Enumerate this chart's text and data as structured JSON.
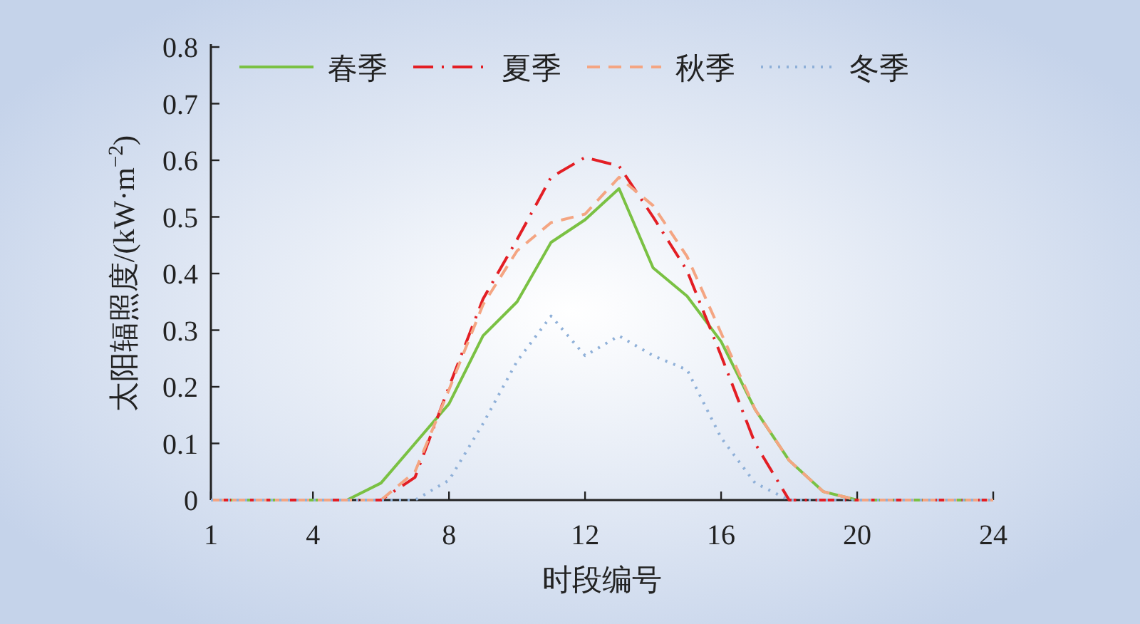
{
  "chart_data": {
    "type": "line",
    "xlabel": "时段编号",
    "ylabel": "太阳辐照度/(kW·m$^{−2}$)",
    "x": [
      1,
      2,
      3,
      4,
      5,
      6,
      7,
      8,
      9,
      10,
      11,
      12,
      13,
      14,
      15,
      16,
      17,
      18,
      19,
      20,
      21,
      22,
      23,
      24
    ],
    "xlim": [
      1,
      24
    ],
    "xticks": [
      1,
      4,
      8,
      12,
      16,
      20,
      24
    ],
    "ylim": [
      0,
      0.8
    ],
    "yticks": [
      0,
      0.1,
      0.2,
      0.3,
      0.4,
      0.5,
      0.6,
      0.7,
      0.8
    ],
    "grid": false,
    "legend": "top",
    "marker": "none",
    "series": [
      {
        "name": "春季",
        "color": "#7ac143",
        "line_style": "solid",
        "values": [
          0,
          0,
          0,
          0,
          0,
          0.03,
          0.1,
          0.17,
          0.29,
          0.35,
          0.455,
          0.495,
          0.55,
          0.41,
          0.36,
          0.28,
          0.16,
          0.07,
          0.015,
          0,
          0,
          0,
          0,
          0
        ]
      },
      {
        "name": "夏季",
        "color": "#e31e24",
        "line_style": "dashdot",
        "values": [
          0,
          0,
          0,
          0,
          0,
          0,
          0.04,
          0.2,
          0.355,
          0.46,
          0.57,
          0.605,
          0.59,
          0.5,
          0.405,
          0.255,
          0.1,
          0,
          0,
          0,
          0,
          0,
          0,
          0
        ]
      },
      {
        "name": "秋季",
        "color": "#f4a582",
        "line_style": "dashed",
        "values": [
          0,
          0,
          0,
          0,
          0,
          0,
          0.05,
          0.195,
          0.345,
          0.44,
          0.49,
          0.505,
          0.57,
          0.52,
          0.43,
          0.295,
          0.16,
          0.07,
          0.015,
          0,
          0,
          0,
          0,
          0
        ]
      },
      {
        "name": "冬季",
        "color": "#8fb0d8",
        "line_style": "dotted",
        "values": [
          0,
          0,
          0,
          0,
          0,
          0,
          0,
          0.035,
          0.135,
          0.245,
          0.325,
          0.255,
          0.29,
          0.255,
          0.23,
          0.11,
          0.03,
          0,
          0,
          0,
          0,
          0,
          0,
          0
        ]
      }
    ]
  }
}
